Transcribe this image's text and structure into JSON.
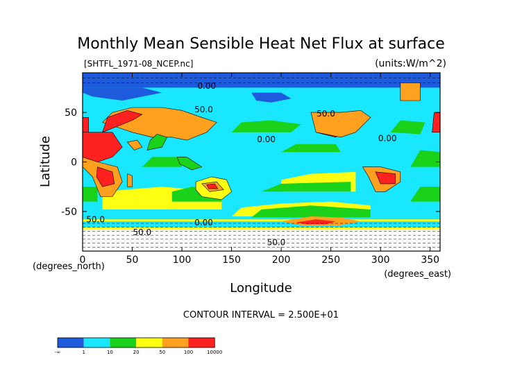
{
  "chart_data": {
    "type": "heatmap",
    "title": "Monthly Mean Sensible Heat Net Flux at surface",
    "subtitle": "[SHTFL_1971-08_NCEP.nc]",
    "units": "(units:W/m^2)",
    "xlabel": "Longitude",
    "ylabel": "Latitude",
    "x_unit_label": "(degrees_east)",
    "y_unit_label": "(degrees_north)",
    "xlim": [
      0,
      360
    ],
    "ylim": [
      -90,
      90
    ],
    "x_ticks": [
      0,
      50,
      100,
      150,
      200,
      250,
      300,
      350
    ],
    "y_ticks": [
      -50,
      0,
      50
    ],
    "contour_interval": "CONTOUR INTERVAL = 2.500E+01",
    "contour_labels": [
      {
        "text": "0.00",
        "x": 125,
        "y": 74
      },
      {
        "text": "50.0",
        "x": 122,
        "y": 50
      },
      {
        "text": "0.00",
        "x": 185,
        "y": 20
      },
      {
        "text": "50.0",
        "x": 245,
        "y": 46
      },
      {
        "text": "0.00",
        "x": 307,
        "y": 21
      },
      {
        "text": "50.0",
        "x": 13,
        "y": -61
      },
      {
        "text": "0.00",
        "x": 122,
        "y": -64
      },
      {
        "text": "50.0",
        "x": 60,
        "y": -74
      },
      {
        "text": "50.0",
        "x": 195,
        "y": -84
      }
    ],
    "legend": {
      "colors": [
        "#1e5adc",
        "#19e6ff",
        "#19d219",
        "#ffff14",
        "#ffa01e",
        "#ff2020"
      ],
      "labels": [
        "-∞",
        "1",
        "10",
        "20",
        "50",
        "100",
        "10000"
      ]
    }
  }
}
